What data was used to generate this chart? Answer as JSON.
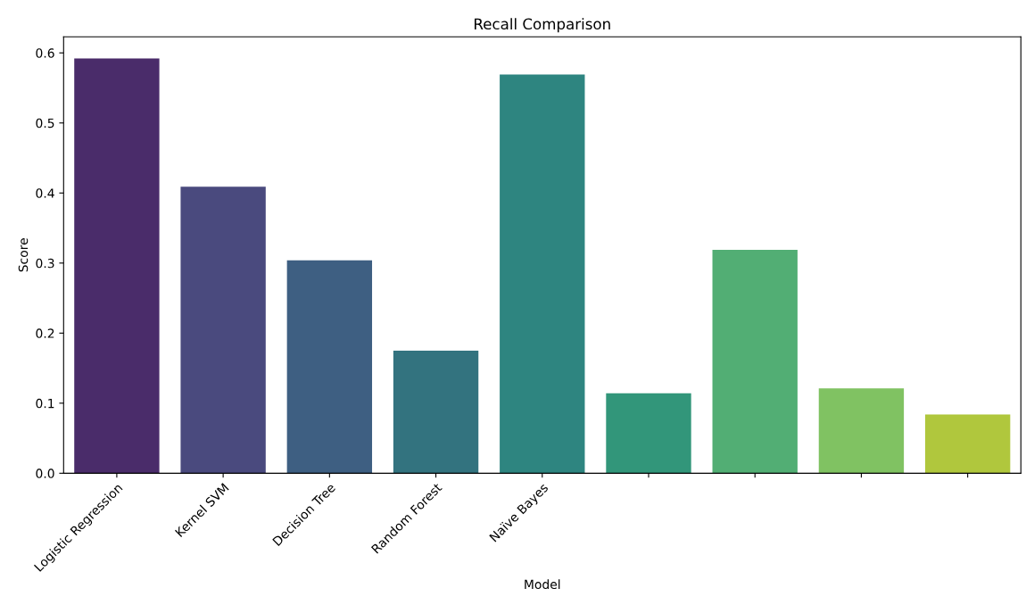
{
  "chart_data": {
    "type": "bar",
    "title": "Recall Comparison",
    "xlabel": "Model",
    "ylabel": "Score",
    "categories": [
      "Logistic Regression",
      "Kernel SVM",
      "Decision Tree",
      "Random Forest",
      "Naïve Bayes",
      null,
      null,
      null,
      null
    ],
    "values": [
      0.592,
      0.409,
      0.304,
      0.175,
      0.569,
      0.114,
      0.319,
      0.121,
      0.084
    ],
    "colors": [
      "#4a2c6a",
      "#4a4a7e",
      "#3e5f82",
      "#33737f",
      "#2e8580",
      "#32967a",
      "#52ae74",
      "#80c262",
      "#b0c73d"
    ],
    "ylim": [
      0,
      0.623
    ],
    "yticks": [
      {
        "value": 0,
        "label": "0.0"
      },
      0.1,
      0.2,
      0.3,
      0.4,
      0.5,
      0.6
    ],
    "grid": false
  }
}
